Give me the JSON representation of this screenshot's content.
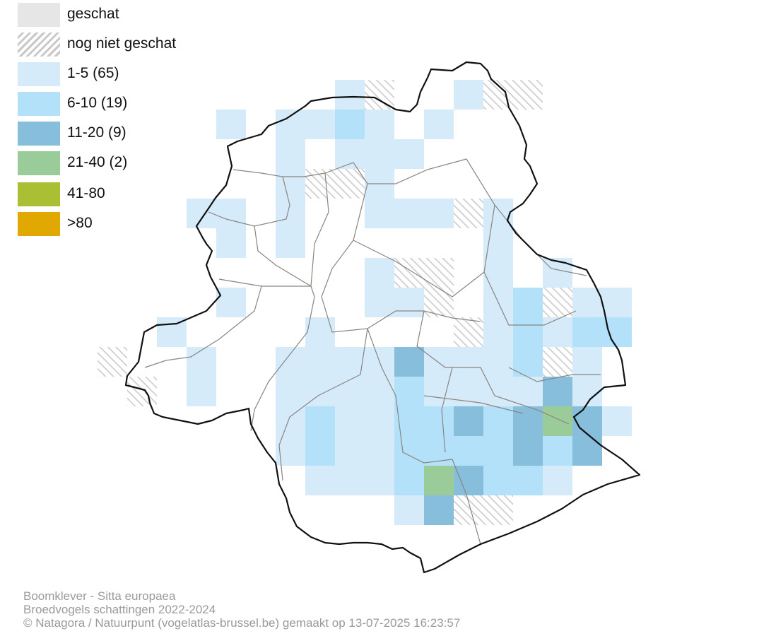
{
  "legend": {
    "items": [
      {
        "key": "geschat",
        "label": "geschat",
        "color": "#e6e6e6",
        "hatched": false
      },
      {
        "key": "nognietgeschat",
        "label": "nog niet geschat",
        "color": "#c8c8c8",
        "hatched": true
      },
      {
        "key": "c1",
        "label": "1-5 (65)",
        "color": "#d6ebfa",
        "hatched": false
      },
      {
        "key": "c2",
        "label": "6-10 (19)",
        "color": "#b3e1fa",
        "hatched": false
      },
      {
        "key": "c3",
        "label": "11-20 (9)",
        "color": "#86bedc",
        "hatched": false
      },
      {
        "key": "c4",
        "label": "21-40 (2)",
        "color": "#99cc99",
        "hatched": false
      },
      {
        "key": "c5",
        "label": "41-80",
        "color": "#aabf33",
        "hatched": false
      },
      {
        "key": "c6",
        "label": ">80",
        "color": "#e0a800",
        "hatched": false
      }
    ]
  },
  "footer": {
    "line1": "Boomklever - Sitta europaea",
    "line2": "Broedvogels schattingen 2022-2024",
    "line3": "© Natagora / Natuurpunt (vogelatlas-brussel.be) gemaakt op 13-07-2025 16:23:57"
  }
}
